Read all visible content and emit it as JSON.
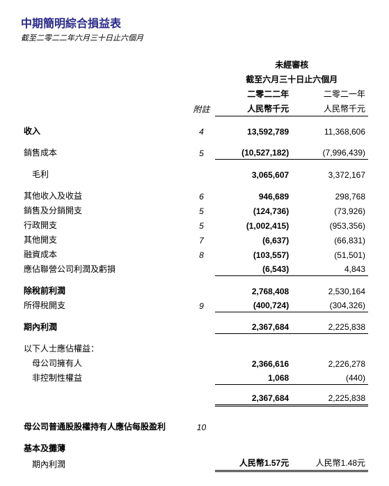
{
  "title": "中期簡明綜合損益表",
  "subtitle": "截至二零二二年六月三十日止六個月",
  "header": {
    "unaudited": "未經審核",
    "period": "截至六月三十日止六個月",
    "cy_year": "二零二二年",
    "py_year": "二零二一年",
    "note_label": "附註",
    "cy_unit": "人民幣千元",
    "py_unit": "人民幣千元"
  },
  "rows": {
    "revenue": {
      "label": "收入",
      "note": "4",
      "cy": "13,592,789",
      "py": "11,368,606"
    },
    "cos": {
      "label": "銷售成本",
      "note": "5",
      "cy": "(10,527,182)",
      "py": "(7,996,439)"
    },
    "gross": {
      "label": "毛利",
      "cy": "3,065,607",
      "py": "3,372,167"
    },
    "other_income": {
      "label": "其他收入及收益",
      "note": "6",
      "cy": "946,689",
      "py": "298,768"
    },
    "selling": {
      "label": "銷售及分銷開支",
      "note": "5",
      "cy": "(124,736)",
      "py": "(73,926)"
    },
    "admin": {
      "label": "行政開支",
      "note": "5",
      "cy": "(1,002,415)",
      "py": "(953,356)"
    },
    "other_exp": {
      "label": "其他開支",
      "note": "7",
      "cy": "(6,637)",
      "py": "(66,831)"
    },
    "finance": {
      "label": "融資成本",
      "note": "8",
      "cy": "(103,557)",
      "py": "(51,501)"
    },
    "associate": {
      "label": "應佔聯營公司利潤及虧損",
      "cy": "(6,543)",
      "py": "4,843"
    },
    "pbt": {
      "label": "除稅前利潤",
      "cy": "2,768,408",
      "py": "2,530,164"
    },
    "tax": {
      "label": "所得稅開支",
      "note": "9",
      "cy": "(400,724)",
      "py": "(304,326)"
    },
    "profit": {
      "label": "期內利潤",
      "cy": "2,367,684",
      "py": "2,225,838"
    },
    "attrib_hdr": {
      "label": "以下人士應佔權益："
    },
    "owners": {
      "label": "母公司擁有人",
      "cy": "2,366,616",
      "py": "2,226,278"
    },
    "nci": {
      "label": "非控制性權益",
      "cy": "1,068",
      "py": "(440)"
    },
    "total_attrib": {
      "cy": "2,367,684",
      "py": "2,225,838"
    },
    "eps_hdr": {
      "label": "母公司普通股股權持有人應佔每股盈利",
      "note": "10"
    },
    "basic_label": {
      "label": "基本及攤薄"
    },
    "basic": {
      "label": "期內利潤",
      "cy": "人民幣1.57元",
      "py": "人民幣1.48元"
    }
  }
}
